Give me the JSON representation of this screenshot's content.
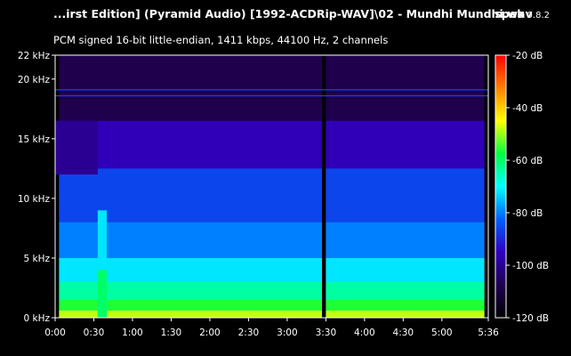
{
  "window": {
    "title": "...irst Edition] (Pyramid Audio) [1992-ACDRip-WAV]\\02 - Mundhi Mundhi.wav",
    "app_name": "spek",
    "app_version": "0.8.2",
    "subtitle": "PCM signed 16-bit little-endian, 1411 kbps, 44100 Hz, 2 channels"
  },
  "chart_data": {
    "type": "heatmap",
    "title": "",
    "xlabel": "",
    "ylabel": "",
    "x_unit": "time (mm:ss)",
    "y_unit": "kHz",
    "duration_seconds": 336,
    "x_ticks": [
      "0:00",
      "0:30",
      "1:00",
      "1:30",
      "2:00",
      "2:30",
      "3:00",
      "3:30",
      "4:00",
      "4:30",
      "5:00",
      "5:36"
    ],
    "x_tick_seconds": [
      0,
      30,
      60,
      90,
      120,
      150,
      180,
      210,
      240,
      270,
      300,
      336
    ],
    "y_ticks": [
      "0 kHz",
      "5 kHz",
      "10 kHz",
      "15 kHz",
      "20 kHz",
      "22 kHz"
    ],
    "y_tick_values": [
      0,
      5,
      10,
      15,
      20,
      22
    ],
    "ylim": [
      0,
      22
    ],
    "colorbar": {
      "ticks": [
        "-20 dB",
        "-40 dB",
        "-60 dB",
        "-80 dB",
        "-100 dB",
        "-120 dB"
      ],
      "values": [
        -20,
        -40,
        -60,
        -80,
        -100,
        -120
      ],
      "range": [
        -120,
        -20
      ],
      "colors": [
        "#000000",
        "#200050",
        "#3000c0",
        "#0060ff",
        "#00ffff",
        "#00ff40",
        "#ffff00",
        "#ff8000",
        "#ff0000"
      ]
    },
    "regions": [
      {
        "t0": 0,
        "t1": 336,
        "f0": 0,
        "f1": 22,
        "db": -108
      },
      {
        "t0": 0,
        "t1": 336,
        "f0": 0,
        "f1": 16.5,
        "db": -96
      },
      {
        "t0": 0,
        "t1": 336,
        "f0": 0,
        "f1": 12.5,
        "db": -86
      },
      {
        "t0": 0,
        "t1": 336,
        "f0": 0,
        "f1": 8,
        "db": -80
      },
      {
        "t0": 0,
        "t1": 336,
        "f0": 0,
        "f1": 5,
        "db": -72
      },
      {
        "t0": 0,
        "t1": 336,
        "f0": 0,
        "f1": 3,
        "db": -64
      },
      {
        "t0": 0,
        "t1": 336,
        "f0": 0,
        "f1": 1.5,
        "db": -56
      },
      {
        "t0": 0,
        "t1": 336,
        "f0": 0,
        "f1": 0.6,
        "db": -48
      },
      {
        "t0": 0,
        "t1": 3,
        "f0": 0,
        "f1": 22,
        "db": -120
      },
      {
        "t0": 0,
        "t1": 33,
        "f0": 12,
        "f1": 16.5,
        "db": -100
      },
      {
        "t0": 33,
        "t1": 40,
        "f0": 0,
        "f1": 9,
        "db": -72
      },
      {
        "t0": 33,
        "t1": 40,
        "f0": 0,
        "f1": 4,
        "db": -60
      },
      {
        "t0": 207,
        "t1": 210,
        "f0": 0,
        "f1": 22,
        "db": -118
      },
      {
        "t0": 333,
        "t1": 336,
        "f0": 0,
        "f1": 22,
        "db": -120
      }
    ],
    "tone_lines_khz": [
      18.6,
      19.1
    ],
    "tone_db": -86
  }
}
